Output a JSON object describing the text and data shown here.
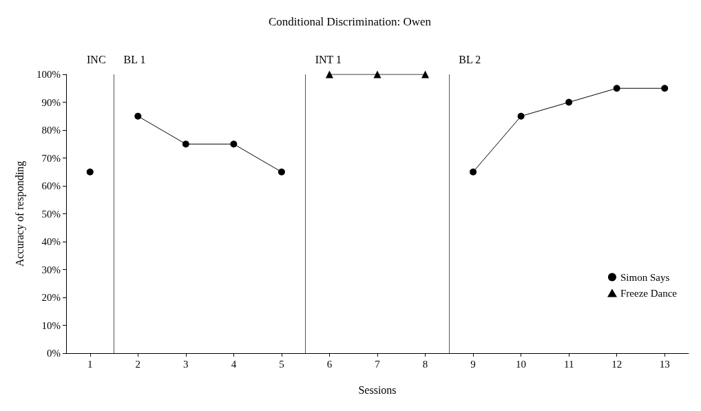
{
  "chart_data": {
    "type": "line",
    "title": "Conditional Discrimination: Owen",
    "xlabel": "Sessions",
    "ylabel": "Accuracy of responding",
    "xlim": [
      0.5,
      13.5
    ],
    "xticks": [
      1,
      2,
      3,
      4,
      5,
      6,
      7,
      8,
      9,
      10,
      11,
      12,
      13
    ],
    "ylim": [
      0,
      100
    ],
    "yticks": [
      {
        "value": 0,
        "label": "0%"
      },
      {
        "value": 10,
        "label": "10%"
      },
      {
        "value": 20,
        "label": "20%"
      },
      {
        "value": 30,
        "label": "30%"
      },
      {
        "value": 40,
        "label": "40%"
      },
      {
        "value": 50,
        "label": "50%"
      },
      {
        "value": 60,
        "label": "60%"
      },
      {
        "value": 70,
        "label": "70%"
      },
      {
        "value": 80,
        "label": "80%"
      },
      {
        "value": 90,
        "label": "90%"
      },
      {
        "value": 100,
        "label": "100%"
      }
    ],
    "series": [
      {
        "name": "Simon Says",
        "color": "#000000",
        "marker": "circle",
        "x": [
          1,
          1.5,
          2,
          3,
          4,
          5,
          5.5,
          9,
          10,
          11,
          12,
          13
        ],
        "values": [
          65,
          null,
          85,
          75,
          75,
          65,
          null,
          65,
          85,
          90,
          95,
          95
        ]
      },
      {
        "name": "Freeze Dance",
        "color": "#000000",
        "marker": "triangle",
        "x": [
          6,
          7,
          8
        ],
        "values": [
          100,
          100,
          100
        ]
      }
    ],
    "ref_lines": [
      {
        "axis": "x",
        "value": 1.5,
        "label": "BL 1"
      },
      {
        "axis": "x",
        "value": 5.5,
        "label": "INT 1"
      },
      {
        "axis": "x",
        "value": 8.5,
        "label": "BL 2"
      }
    ],
    "annotations": [
      "INC"
    ],
    "grid": false,
    "legend": "bottom right",
    "line_style": "solid"
  }
}
